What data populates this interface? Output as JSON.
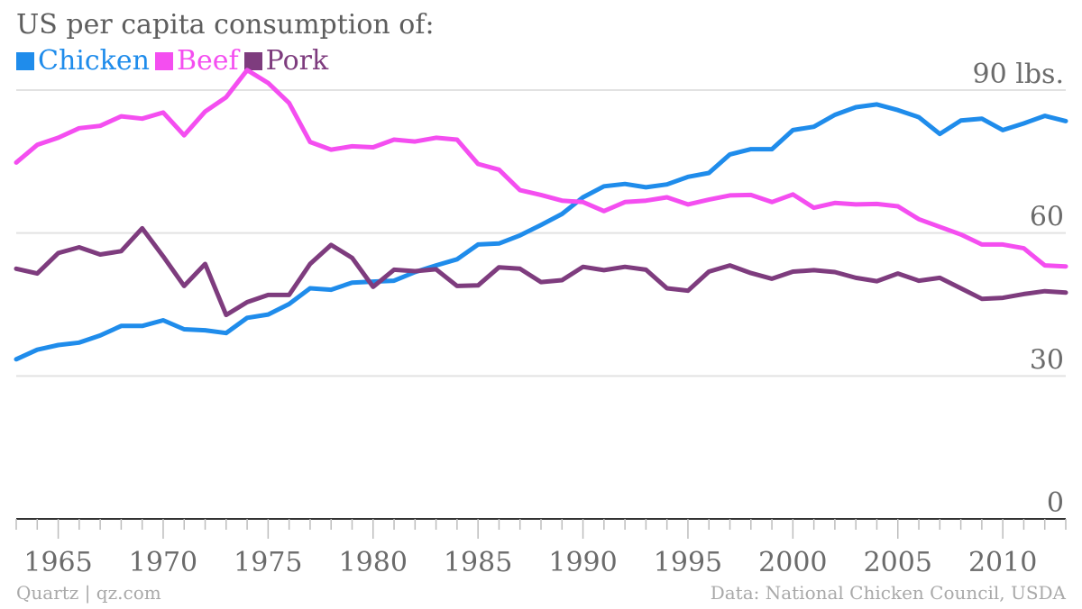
{
  "header": {
    "title": "US per capita consumption of:"
  },
  "footer": {
    "source_left": "Quartz | qz.com",
    "source_right": "Data: National Chicken Council, USDA"
  },
  "chart_data": {
    "type": "line",
    "title": "US per capita consumption of:",
    "xlabel": "",
    "ylabel": "",
    "ylim": [
      0,
      90
    ],
    "xlim": [
      1963,
      2013
    ],
    "grid": true,
    "legend_position": "top-left",
    "y_ticks": [
      {
        "value": 0,
        "label": "0"
      },
      {
        "value": 30,
        "label": "30"
      },
      {
        "value": 60,
        "label": "60"
      },
      {
        "value": 90,
        "label": "90 lbs."
      }
    ],
    "x_ticks": [
      1965,
      1970,
      1975,
      1980,
      1985,
      1990,
      1995,
      2000,
      2005,
      2010
    ],
    "x": [
      1963,
      1964,
      1965,
      1966,
      1967,
      1968,
      1969,
      1970,
      1971,
      1972,
      1973,
      1974,
      1975,
      1976,
      1977,
      1978,
      1979,
      1980,
      1981,
      1982,
      1983,
      1984,
      1985,
      1986,
      1987,
      1988,
      1989,
      1990,
      1991,
      1992,
      1993,
      1994,
      1995,
      1996,
      1997,
      1998,
      1999,
      2000,
      2001,
      2002,
      2003,
      2004,
      2005,
      2006,
      2007,
      2008,
      2009,
      2010,
      2011,
      2012,
      2013
    ],
    "series": [
      {
        "name": "Chicken",
        "color": "#1f8ceb",
        "values": [
          33.5,
          35.5,
          36.5,
          37,
          38.5,
          40.5,
          40.5,
          41.7,
          39.8,
          39.6,
          39,
          42.2,
          42.9,
          45.1,
          48.4,
          48.1,
          49.6,
          49.8,
          50,
          51.8,
          53.2,
          54.5,
          57.6,
          57.8,
          59.5,
          61.7,
          64,
          67.5,
          69.8,
          70.3,
          69.6,
          70.2,
          71.8,
          72.6,
          76.5,
          77.6,
          77.6,
          81.6,
          82.3,
          84.8,
          86.4,
          87,
          85.8,
          84.3,
          80.8,
          83.6,
          84,
          81.6,
          83,
          84.6,
          83.5
        ]
      },
      {
        "name": "Beef",
        "color": "#f44ef0",
        "values": [
          74.8,
          78.5,
          80,
          82,
          82.5,
          84.5,
          84,
          85.3,
          80.5,
          85.5,
          88.5,
          94.2,
          91.5,
          87.3,
          79.1,
          77.5,
          78.2,
          78,
          79.6,
          79.2,
          80,
          79.6,
          74.5,
          73.3,
          69,
          68,
          66.8,
          66.5,
          64.6,
          66.5,
          66.8,
          67.5,
          66,
          67,
          67.9,
          68,
          66.5,
          68.1,
          65.3,
          66.3,
          66,
          66.1,
          65.6,
          62.9,
          61.3,
          59.7,
          57.6,
          57.6,
          56.8,
          53.2,
          53
        ]
      },
      {
        "name": "Pork",
        "color": "#7e3c7e",
        "values": [
          52.5,
          51.5,
          55.8,
          57,
          55.5,
          56.2,
          61,
          55.1,
          48.9,
          53.5,
          42.8,
          45.5,
          47,
          47,
          53.5,
          57.5,
          54.8,
          48.7,
          52.3,
          52,
          52.4,
          48.9,
          49,
          52.8,
          52.5,
          49.7,
          50.1,
          52.9,
          52.2,
          52.9,
          52.3,
          48.4,
          47.9,
          51.9,
          53.2,
          51.6,
          50.4,
          51.9,
          52.2,
          51.8,
          50.6,
          49.9,
          51.5,
          50,
          50.6,
          48.4,
          46.2,
          46.4,
          47.2,
          47.8,
          47.5
        ]
      }
    ]
  }
}
